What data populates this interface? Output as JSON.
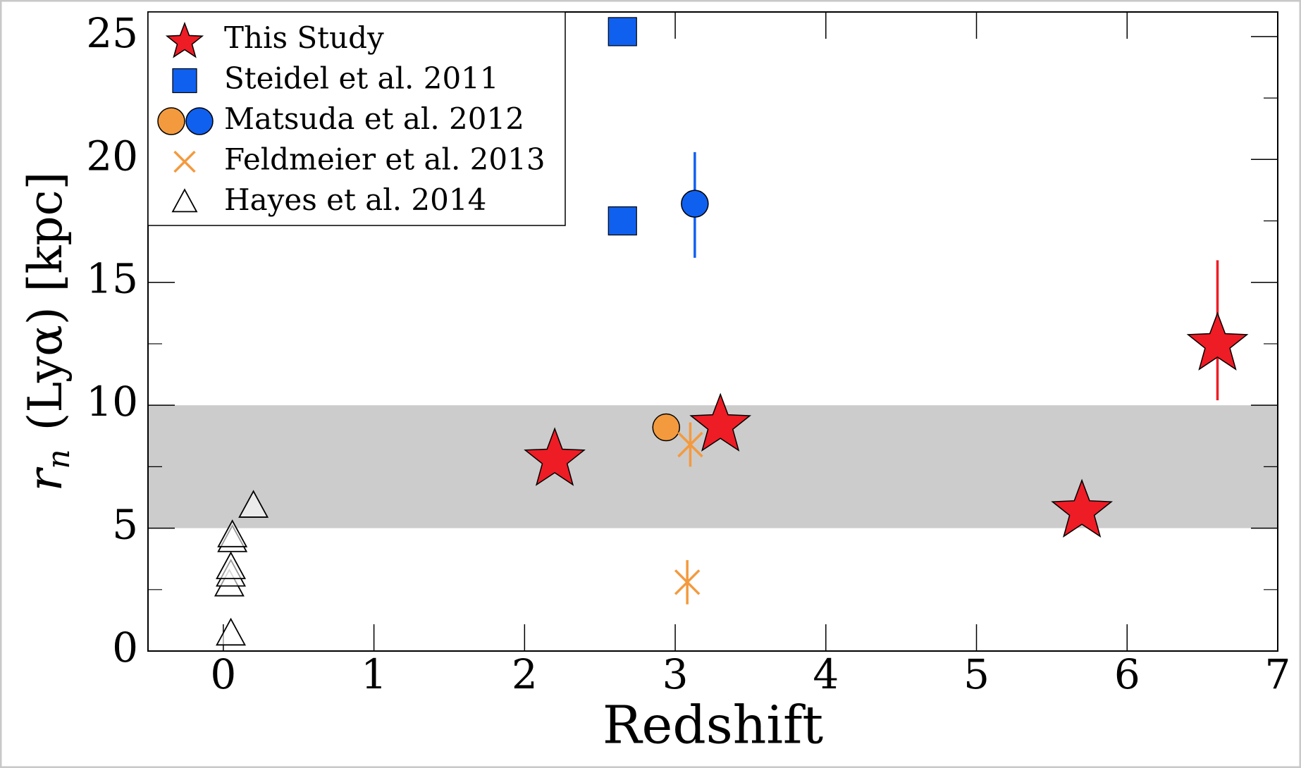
{
  "chart_data": {
    "type": "scatter",
    "xlabel": "Redshift",
    "ylabel": {
      "symbol": "r",
      "subscript": "n",
      "text": "(Lyα) [kpc]"
    },
    "xlim": [
      -0.5,
      7
    ],
    "xticks": [
      0,
      1,
      2,
      3,
      4,
      5,
      6,
      7
    ],
    "ylim": [
      0,
      26
    ],
    "yticks": [
      0,
      5,
      10,
      15,
      20,
      25
    ],
    "yminor": [
      2.5,
      7.5,
      12.5,
      17.5,
      22.5
    ],
    "band": {
      "range": [
        5,
        10
      ],
      "color": "#cccccc"
    },
    "legend": "upper left",
    "series": [
      {
        "name": "This Study",
        "marker": "star",
        "color": "#ee1c25",
        "x": [
          2.2,
          3.3,
          5.7,
          6.6
        ],
        "values": [
          7.9,
          9.3,
          5.8,
          12.6
        ],
        "yerr": [
          null,
          null,
          null,
          [
            2.4,
            3.3
          ]
        ]
      },
      {
        "name": "Steidel et al. 2011",
        "marker": "square",
        "color": "#1060f0",
        "x": [
          2.65,
          2.65
        ],
        "values": [
          25.2,
          17.5
        ]
      },
      {
        "name": "Matsuda et al. 2012",
        "marker": "circle",
        "colors": [
          "#f39a3e",
          "#1060f0"
        ],
        "x": [
          2.94,
          3.13
        ],
        "values": [
          9.1,
          18.2
        ],
        "yerr": [
          null,
          [
            2.2,
            2.1
          ]
        ]
      },
      {
        "name": "Feldmeier et al. 2013",
        "marker": "x",
        "color": "#f39a3e",
        "x": [
          3.1,
          3.08
        ],
        "values": [
          8.4,
          2.8
        ],
        "yerr": [
          [
            0.9,
            0.9
          ],
          [
            0.9,
            0.9
          ]
        ]
      },
      {
        "name": "Hayes et al. 2014",
        "marker": "triangle",
        "color": "#000000",
        "x": [
          0.05,
          0.04,
          0.05,
          0.05,
          0.06,
          0.06,
          0.2
        ],
        "values": [
          0.7,
          2.7,
          3.1,
          3.4,
          4.5,
          4.7,
          5.9
        ]
      }
    ]
  }
}
